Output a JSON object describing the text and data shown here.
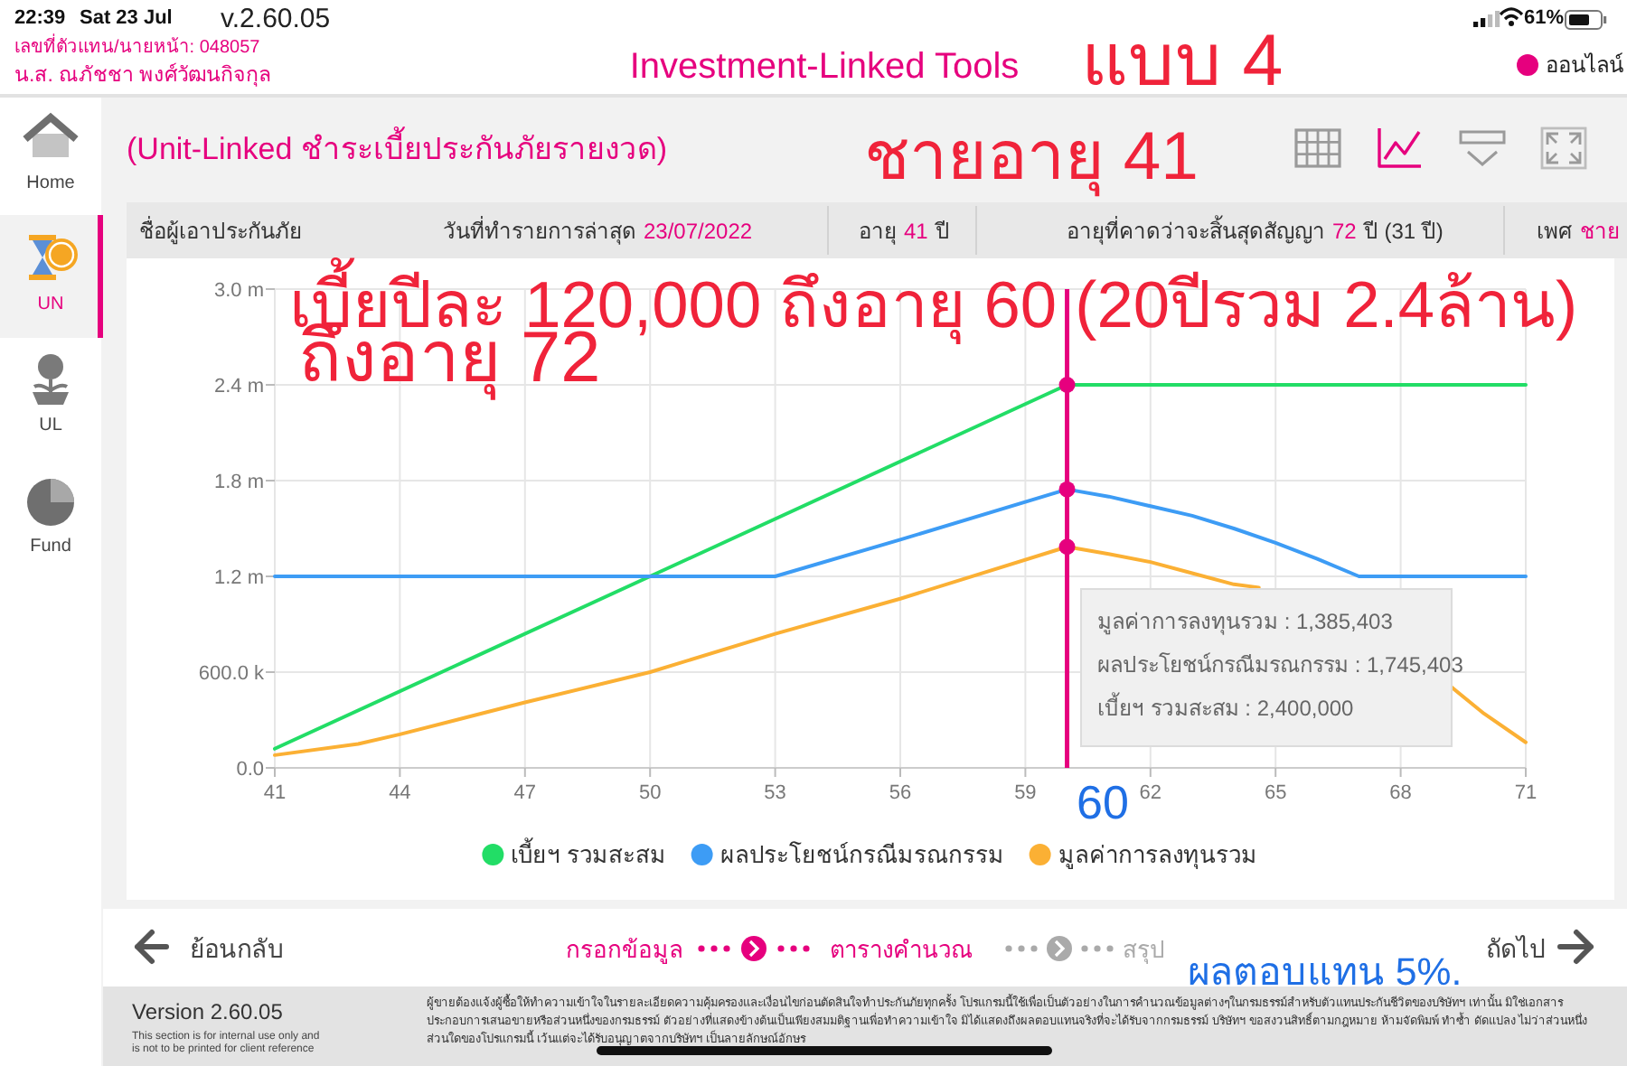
{
  "chart_data": {
    "type": "line",
    "title": "Investment-Linked Tools",
    "subtitle": "(Unit-Linked ชำระเบี้ยประกันภัยรายงวด)",
    "xlim": [
      41,
      71
    ],
    "xticks": [
      41,
      44,
      47,
      50,
      53,
      56,
      59,
      62,
      65,
      68,
      71
    ],
    "ylim": [
      0,
      3000000
    ],
    "yticks": [
      {
        "value": 0,
        "label": "0.0"
      },
      {
        "value": 600000,
        "label": "600.0 k"
      },
      {
        "value": 1200000,
        "label": "1.2 m"
      },
      {
        "value": 1800000,
        "label": "1.8 m"
      },
      {
        "value": 2400000,
        "label": "2.4 m"
      },
      {
        "value": 3000000,
        "label": "3.0 m"
      }
    ],
    "grid": true,
    "legend": "bottom",
    "series": [
      {
        "name": "เบี้ยฯ รวมสะสม",
        "color": "#22dd66",
        "x": [
          41,
          60,
          71
        ],
        "values": [
          120000,
          2400000,
          2400000
        ]
      },
      {
        "name": "ผลประโยชน์กรณีมรณกรรม",
        "color": "#3d9cf5",
        "x": [
          41,
          53,
          56,
          60,
          61,
          62,
          63,
          64,
          65,
          66,
          67,
          71
        ],
        "values": [
          1200000,
          1200000,
          1430000,
          1745403,
          1700000,
          1640000,
          1580000,
          1500000,
          1410000,
          1310000,
          1200000,
          1200000
        ]
      },
      {
        "name": "มูลค่าการลงทุนรวม",
        "color": "#fbb034",
        "x": [
          41,
          43,
          44,
          47,
          50,
          53,
          56,
          60,
          61,
          62,
          63,
          64,
          64.6
        ],
        "values": [
          80000,
          150000,
          210000,
          410000,
          600000,
          840000,
          1060000,
          1385403,
          1340000,
          1290000,
          1220000,
          1150000,
          1130000
        ]
      },
      {
        "color": "#fbb034",
        "x": [
          69.2,
          70,
          71
        ],
        "values": [
          510000,
          340000,
          160000
        ]
      },
      {
        "type": "scatter",
        "color": "#e6007e",
        "x": [
          60,
          60,
          60
        ],
        "values": [
          2400000,
          1745403,
          1385403
        ]
      }
    ],
    "ref_lines": [
      {
        "axis": "x",
        "value": 60,
        "color": "#e6007e"
      }
    ],
    "annotations": [
      "22:39",
      "Sat 23 Jul",
      "v.2.60.05",
      "61%",
      "เลขที่ตัวแทน/นายหน้า: 048057",
      "น.ส. ณภัชชา  พงศ์วัฒนกิจกุล",
      "แบบ 4",
      "ออนไลน์",
      "ชายอายุ 41",
      "ชื่อผู้เอาประกันภัย",
      "วันที่ทำรายการล่าสุด",
      "23/07/2022",
      "อายุ",
      "41",
      "ปี",
      "อายุที่คาดว่าจะสิ้นสุดสัญญา",
      "72",
      "ปี (31 ปี)",
      "เพศ",
      "ชาย",
      "เบี้ยปีละ 120,000 ถึงอายุ 60 (20ปีรวม 2.4ล้าน)",
      "ถึงอายุ 72",
      "มูลค่าการลงทุนรวม : 1,385,403",
      "ผลประโยชน์กรณีมรณกรรม : 1,745,403",
      "เบี้ยฯ รวมสะสม : 2,400,000",
      "60",
      "Home",
      "UN",
      "UL",
      "Fund",
      "ย้อนกลับ",
      "กรอกข้อมูล",
      "ตารางคำนวณ",
      "สรุป",
      "ถัดไป",
      "ผลตอบแทน 5%.",
      "Version 2.60.05",
      "This section is for internal use only and",
      "is not to be printed for client reference",
      "ผู้ขายต้องแจ้งผู้ซื้อให้ทำความเข้าใจในรายละเอียดความคุ้มครองและเงื่อนไขก่อนตัดสินใจทำประกันภัยทุกครั้ง โปรแกรมนี้ใช้เพื่อเป็นตัวอย่างในการคำนวณข้อมูลต่างๆในกรมธรรม์สำหรับตัวแทนประกันชีวิตของบริษัทฯ เท่านั้น มิใช่เอกสาร",
      "ประกอบการเสนอขายหรือส่วนหนึ่งของกรมธรรม์ ตัวอย่างที่แสดงข้างต้นเป็นเพียงสมมติฐานเพื่อทำความเข้าใจ มิได้แสดงถึงผลตอบแทนจริงที่จะได้รับจากกรมธรรม์ บริษัทฯ ขอสงวนสิทธิ์ตามกฎหมาย ห้ามจัดพิมพ์ ทำซ้ำ ดัดแปลง ไม่ว่าส่วนหนึ่ง",
      "ส่วนใดของโปรแกรมนี้ เว้นแต่จะได้รับอนุญาตจากบริษัทฯ เป็นลายลักษณ์อักษร"
    ]
  }
}
